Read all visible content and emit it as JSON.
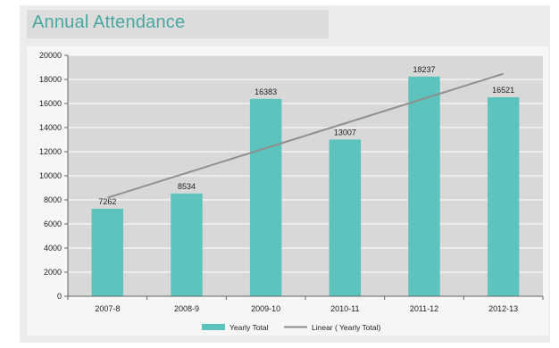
{
  "title": "Annual Attendance",
  "chart_data": {
    "type": "bar",
    "title": "Annual Attendance",
    "categories": [
      "2007-8",
      "2008-9",
      "2009-10",
      "2010-11",
      "2011-12",
      "2012-13"
    ],
    "series": [
      {
        "name": "Yearly Total",
        "values": [
          7262,
          8534,
          16383,
          13007,
          18237,
          16521
        ],
        "color": "#5cc4bc"
      }
    ],
    "trendline": {
      "name": "Linear ( Yearly Total)",
      "type": "linear",
      "color": "#8f8f8f"
    },
    "ylim": [
      0,
      20000
    ],
    "yticks": [
      0,
      2000,
      4000,
      6000,
      8000,
      10000,
      12000,
      14000,
      16000,
      18000,
      20000
    ],
    "data_labels": true,
    "grid": true,
    "legend": "bottom-center",
    "colors": {
      "plot_background": "#d8d8d8",
      "grid": "#ffffff",
      "axis": "#666666"
    }
  }
}
